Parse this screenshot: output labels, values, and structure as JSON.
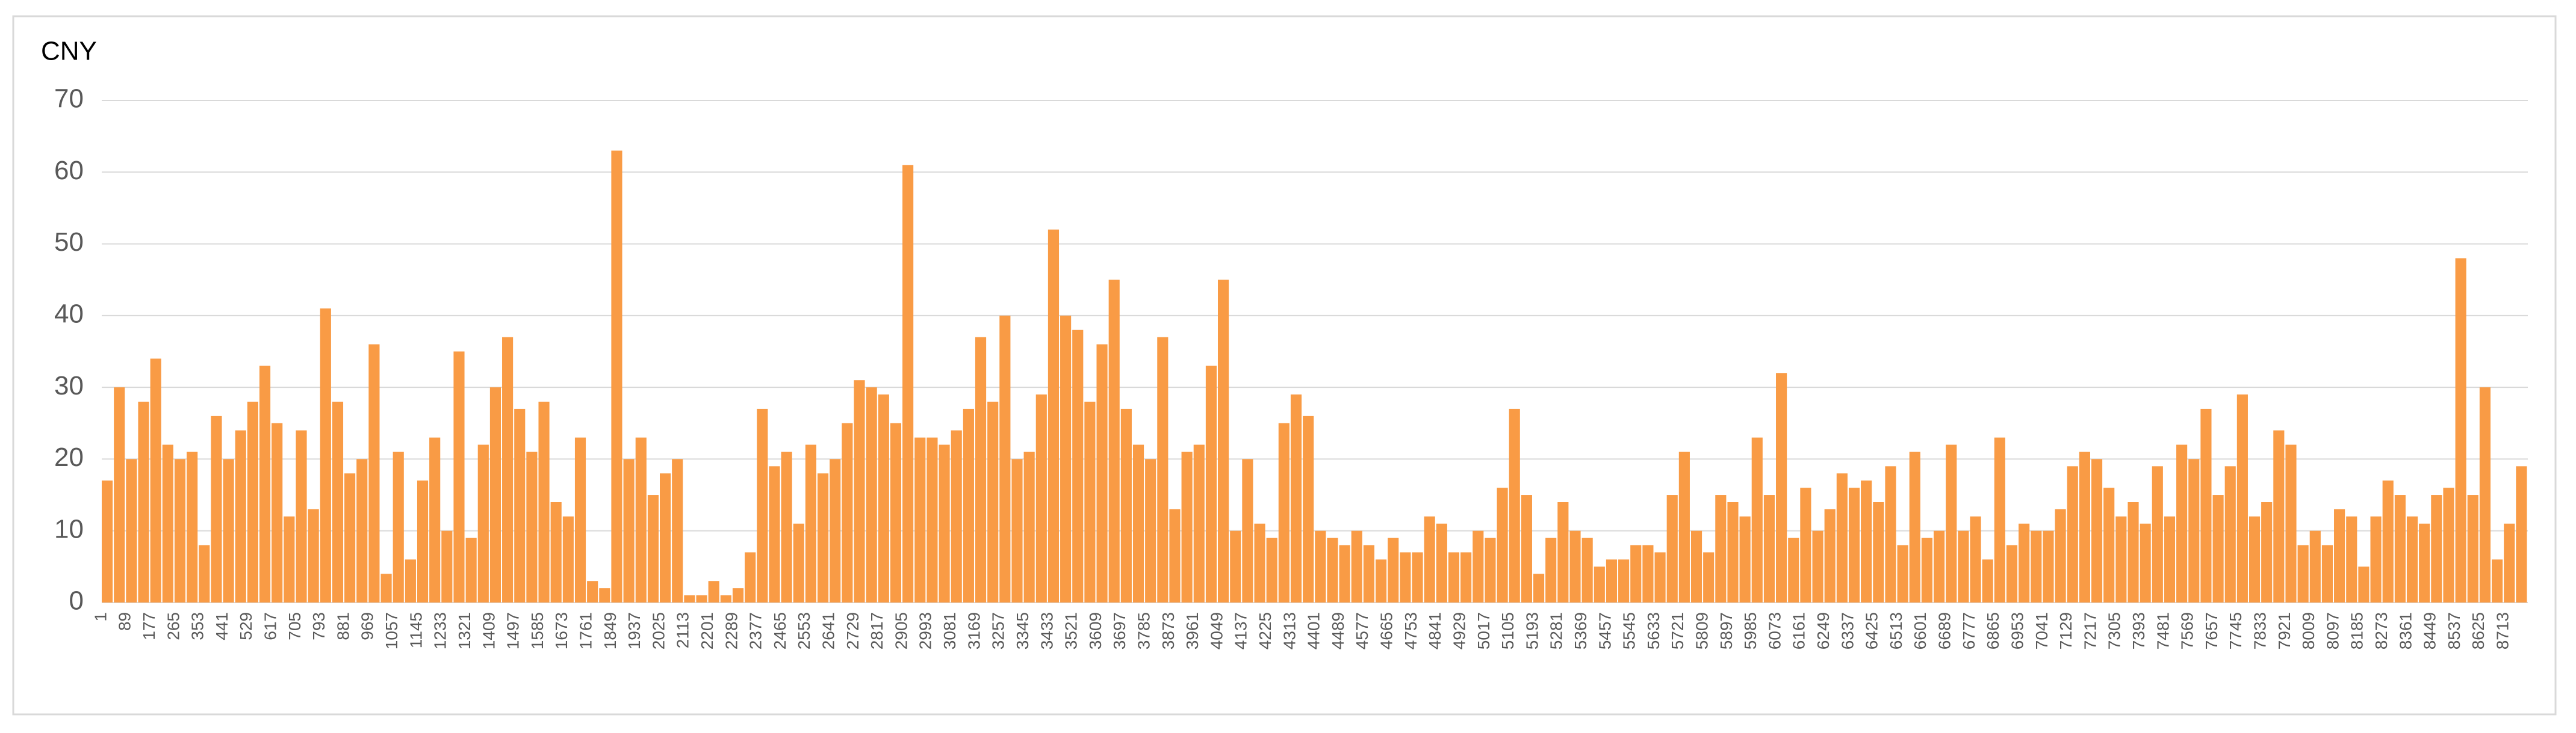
{
  "chart_data": {
    "type": "bar",
    "y_label": "CNY",
    "color": "#f99b45",
    "grid": true,
    "ylim": [
      0,
      70
    ],
    "yticks": [
      0,
      10,
      20,
      30,
      40,
      50,
      60,
      70
    ],
    "xlim": [
      1,
      8800
    ],
    "xticks": [
      1,
      89,
      177,
      265,
      353,
      441,
      529,
      617,
      705,
      793,
      881,
      969,
      1057,
      1145,
      1233,
      1321,
      1409,
      1497,
      1585,
      1673,
      1761,
      1849,
      1937,
      2025,
      2113,
      2201,
      2289,
      2377,
      2465,
      2553,
      2641,
      2729,
      2817,
      2905,
      2993,
      3081,
      3169,
      3257,
      3345,
      3433,
      3521,
      3609,
      3697,
      3785,
      3873,
      3961,
      4049,
      4137,
      4225,
      4313,
      4401,
      4489,
      4577,
      4665,
      4753,
      4841,
      4929,
      5017,
      5105,
      5193,
      5281,
      5369,
      5457,
      5545,
      5633,
      5721,
      5809,
      5897,
      5985,
      6073,
      6161,
      6249,
      6337,
      6425,
      6513,
      6601,
      6689,
      6777,
      6865,
      6953,
      7041,
      7129,
      7217,
      7305,
      7393,
      7481,
      7569,
      7657,
      7745,
      7833,
      7921,
      8009,
      8097,
      8185,
      8273,
      8361,
      8449,
      8537,
      8625,
      8713
    ],
    "x": [
      1,
      45,
      89,
      133,
      177,
      221,
      265,
      309,
      353,
      397,
      441,
      485,
      529,
      573,
      617,
      661,
      705,
      749,
      793,
      837,
      881,
      925,
      969,
      1013,
      1057,
      1101,
      1145,
      1189,
      1233,
      1277,
      1321,
      1365,
      1409,
      1453,
      1497,
      1541,
      1585,
      1629,
      1673,
      1717,
      1761,
      1805,
      1849,
      1893,
      1937,
      1981,
      2025,
      2069,
      2113,
      2157,
      2201,
      2245,
      2289,
      2333,
      2377,
      2421,
      2465,
      2509,
      2553,
      2597,
      2641,
      2685,
      2729,
      2773,
      2817,
      2861,
      2905,
      2949,
      2993,
      3037,
      3081,
      3125,
      3169,
      3213,
      3257,
      3301,
      3345,
      3389,
      3433,
      3477,
      3521,
      3565,
      3609,
      3653,
      3697,
      3741,
      3785,
      3829,
      3873,
      3917,
      3961,
      4005,
      4049,
      4093,
      4137,
      4181,
      4225,
      4269,
      4313,
      4357,
      4401,
      4445,
      4489,
      4533,
      4577,
      4621,
      4665,
      4709,
      4753,
      4797,
      4841,
      4885,
      4929,
      4973,
      5017,
      5061,
      5105,
      5149,
      5193,
      5237,
      5281,
      5325,
      5369,
      5413,
      5457,
      5501,
      5545,
      5589,
      5633,
      5677,
      5721,
      5765,
      5809,
      5853,
      5897,
      5941,
      5985,
      6029,
      6073,
      6117,
      6161,
      6205,
      6249,
      6293,
      6337,
      6381,
      6425,
      6469,
      6513,
      6557,
      6601,
      6645,
      6689,
      6733,
      6777,
      6821,
      6865,
      6909,
      6953,
      6997,
      7041,
      7085,
      7129,
      7173,
      7217,
      7261,
      7305,
      7349,
      7393,
      7437,
      7481,
      7525,
      7569,
      7613,
      7657,
      7701,
      7745,
      7789,
      7833,
      7877,
      7921,
      7965,
      8009,
      8053,
      8097,
      8141,
      8185,
      8229,
      8273,
      8317,
      8361,
      8405,
      8449,
      8493,
      8537,
      8581,
      8625,
      8669,
      8713,
      8757
    ],
    "values": [
      17,
      30,
      20,
      28,
      34,
      22,
      20,
      21,
      8,
      26,
      20,
      24,
      28,
      33,
      25,
      12,
      24,
      13,
      41,
      28,
      18,
      20,
      36,
      4,
      21,
      6,
      17,
      23,
      10,
      35,
      9,
      22,
      30,
      37,
      27,
      21,
      28,
      14,
      12,
      23,
      3,
      2,
      63,
      20,
      23,
      15,
      18,
      20,
      1,
      1,
      3,
      1,
      2,
      7,
      27,
      19,
      21,
      11,
      22,
      18,
      20,
      25,
      31,
      30,
      29,
      25,
      61,
      23,
      23,
      22,
      24,
      27,
      37,
      28,
      40,
      20,
      21,
      29,
      52,
      40,
      38,
      28,
      36,
      45,
      27,
      22,
      20,
      37,
      13,
      21,
      22,
      33,
      45,
      10,
      20,
      11,
      9,
      25,
      29,
      26,
      10,
      9,
      8,
      10,
      8,
      6,
      9,
      7,
      7,
      12,
      11,
      7,
      7,
      10,
      9,
      16,
      27,
      15,
      4,
      9,
      14,
      10,
      9,
      5,
      6,
      6,
      8,
      8,
      7,
      15,
      21,
      10,
      7,
      15,
      14,
      12,
      23,
      15,
      32,
      9,
      16,
      10,
      13,
      18,
      16,
      17,
      14,
      19,
      8,
      21,
      9,
      10,
      22,
      10,
      12,
      6,
      23,
      8,
      11,
      10,
      10,
      13,
      19,
      21,
      20,
      16,
      12,
      14,
      11,
      19,
      12,
      22,
      20,
      27,
      15,
      19,
      29,
      12,
      14,
      24,
      22,
      8,
      10,
      8,
      13,
      12,
      5,
      12,
      17,
      15,
      12,
      11,
      15,
      16,
      48,
      15,
      30,
      6,
      11,
      19
    ]
  }
}
